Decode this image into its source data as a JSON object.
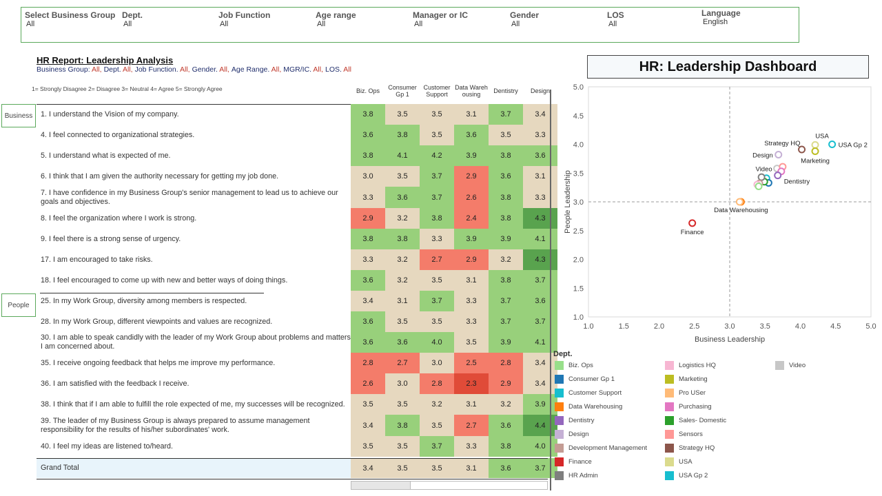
{
  "filters": [
    {
      "label": "Select Business Group",
      "value": "All"
    },
    {
      "label": "Dept.",
      "value": "All"
    },
    {
      "label": "Job Function",
      "value": "All"
    },
    {
      "label": "Age range",
      "value": "All"
    },
    {
      "label": "Manager or IC",
      "value": "All"
    },
    {
      "label": "Gender",
      "value": "All"
    },
    {
      "label": "LOS",
      "value": "All"
    },
    {
      "label": "Language",
      "value": "English"
    }
  ],
  "report": {
    "title": "HR Report: Leadership Analysis",
    "subtitle": [
      {
        "label": "Business Group:",
        "value": "All,"
      },
      {
        "label": "Dept.",
        "value": "All,"
      },
      {
        "label": "Job Function.",
        "value": "All,"
      },
      {
        "label": "Gender.",
        "value": "All,"
      },
      {
        "label": "Age Range.",
        "value": "All,"
      },
      {
        "label": "MGR/IC.",
        "value": "All,"
      },
      {
        "label": "LOS.",
        "value": "All"
      }
    ],
    "scale_legend": "1= Strongly Disagree  2= Disagree  3= Neutral  4= Agree  5= Strongly Agree"
  },
  "columns": [
    "Biz. Ops",
    "Consumer Gp 1",
    "Customer Support",
    "Data Warehousing",
    "Dentistry",
    "Design"
  ],
  "column_headers_display": [
    [
      "Biz. Ops"
    ],
    [
      "Consumer",
      "Gp 1"
    ],
    [
      "Customer",
      "Support"
    ],
    [
      "Data Wareh",
      "ousing"
    ],
    [
      "Dentistry"
    ],
    [
      "Design"
    ]
  ],
  "side_labels": {
    "business": "Business",
    "people": "People"
  },
  "questions": [
    {
      "text": "1. I understand the Vision of my company.",
      "values": [
        "3.8",
        "3.5",
        "3.5",
        "3.1",
        "3.7",
        "3.4"
      ]
    },
    {
      "text": "4. I feel connected to organizational strategies.",
      "values": [
        "3.6",
        "3.8",
        "3.5",
        "3.6",
        "3.5",
        "3.3"
      ]
    },
    {
      "text": "5. I understand what is expected of me.",
      "values": [
        "3.8",
        "4.1",
        "4.2",
        "3.9",
        "3.8",
        "3.6"
      ]
    },
    {
      "text": "6. I think that I am given the authority necessary for getting my job done.",
      "values": [
        "3.0",
        "3.5",
        "3.7",
        "2.9",
        "3.6",
        "3.1"
      ]
    },
    {
      "text": "7. I have confidence in my Business Group's senior management to lead us to achieve our goals and objectives.",
      "values": [
        "3.3",
        "3.6",
        "3.7",
        "2.6",
        "3.8",
        "3.3"
      ]
    },
    {
      "text": "8. I feel the organization where I work is strong.",
      "values": [
        "2.9",
        "3.2",
        "3.8",
        "2.4",
        "3.8",
        "4.3"
      ]
    },
    {
      "text": "9. I feel there is a strong sense of urgency.",
      "values": [
        "3.8",
        "3.8",
        "3.3",
        "3.9",
        "3.9",
        "4.1"
      ]
    },
    {
      "text": "17. I am encouraged to take risks.",
      "values": [
        "3.3",
        "3.2",
        "2.7",
        "2.9",
        "3.2",
        "4.3"
      ]
    },
    {
      "text": "18. I feel encouraged to come up with new and better ways of doing things.",
      "values": [
        "3.6",
        "3.2",
        "3.5",
        "3.1",
        "3.8",
        "3.7"
      ]
    },
    {
      "text": "25. In my Work Group,  diversity among members is respected.",
      "values": [
        "3.4",
        "3.1",
        "3.7",
        "3.3",
        "3.7",
        "3.6"
      ]
    },
    {
      "text": "28. In my Work Group, different viewpoints and values are recognized.",
      "values": [
        "3.6",
        "3.5",
        "3.5",
        "3.3",
        "3.7",
        "3.7"
      ]
    },
    {
      "text": "30. I am able to speak candidly with the leader of my Work Group about problems and matters I am concerned about.",
      "values": [
        "3.6",
        "3.6",
        "4.0",
        "3.5",
        "3.9",
        "4.1"
      ]
    },
    {
      "text": "35. I receive ongoing feedback that helps me improve my performance.",
      "values": [
        "2.8",
        "2.7",
        "3.0",
        "2.5",
        "2.8",
        "3.4"
      ]
    },
    {
      "text": "36. I am satisfied with the feedback I receive.",
      "values": [
        "2.6",
        "3.0",
        "2.8",
        "2.3",
        "2.9",
        "3.4"
      ]
    },
    {
      "text": "38. I think that if I am able to fulfill the role expected of me, my successes will be recognized.",
      "values": [
        "3.5",
        "3.5",
        "3.2",
        "3.1",
        "3.2",
        "3.9"
      ]
    },
    {
      "text": "39. The leader of my Business Group  is always prepared to assume management responsibility for the results of his/her subordinates' work.",
      "values": [
        "3.4",
        "3.8",
        "3.5",
        "2.7",
        "3.6",
        "4.4"
      ]
    },
    {
      "text": "40. I feel my ideas are listened to/heard.",
      "values": [
        "3.5",
        "3.5",
        "3.7",
        "3.3",
        "3.8",
        "4.0"
      ]
    }
  ],
  "grand_total": {
    "text": "Grand Total",
    "values": [
      "3.4",
      "3.5",
      "3.5",
      "3.1",
      "3.6",
      "3.7"
    ]
  },
  "dashboard_title": "HR: Leadership Dashboard",
  "chart_data": {
    "type": "scatter",
    "xlabel": "Business Leadership",
    "ylabel": "People Leadership",
    "xlim": [
      1.0,
      5.0
    ],
    "ylim": [
      1.0,
      5.0
    ],
    "xticks": [
      "1.0",
      "1.5",
      "2.0",
      "2.5",
      "3.0",
      "3.5",
      "4.0",
      "4.5",
      "5.0"
    ],
    "yticks": [
      "1.0",
      "1.5",
      "2.0",
      "2.5",
      "3.0",
      "3.5",
      "4.0",
      "4.5",
      "5.0"
    ],
    "reference_lines": {
      "x": 3.0,
      "y": 3.0
    },
    "grid": false,
    "points": [
      {
        "dept": "Finance",
        "x": 2.47,
        "y": 2.63,
        "color": "#d62728",
        "label": "Finance"
      },
      {
        "dept": "Data Warehousing",
        "x": 3.16,
        "y": 3.0,
        "color": "#ff7f0e",
        "label": "Data Warehousing"
      },
      {
        "dept": "Pro USer",
        "x": 3.14,
        "y": 3.0,
        "color": "#ffbb78",
        "label": ""
      },
      {
        "dept": "Strategy HQ",
        "x": 4.02,
        "y": 3.91,
        "color": "#8c564b",
        "label": "Strategy HQ"
      },
      {
        "dept": "USA",
        "x": 4.21,
        "y": 3.99,
        "color": "#dbdb8d",
        "label": "USA"
      },
      {
        "dept": "USA Gp 2",
        "x": 4.45,
        "y": 4.0,
        "color": "#17becf",
        "label": "USA Gp 2"
      },
      {
        "dept": "Marketing",
        "x": 4.21,
        "y": 3.88,
        "color": "#bcbd22",
        "label": "Marketing"
      },
      {
        "dept": "Design",
        "x": 3.69,
        "y": 3.82,
        "color": "#c5b0d5",
        "label": "Design"
      },
      {
        "dept": "Video",
        "x": 3.67,
        "y": 3.58,
        "color": "#c7c7c7",
        "label": "Video"
      },
      {
        "dept": "Sensors",
        "x": 3.75,
        "y": 3.61,
        "color": "#ff9896",
        "label": ""
      },
      {
        "dept": "Purchasing",
        "x": 3.73,
        "y": 3.53,
        "color": "#e377c2",
        "label": ""
      },
      {
        "dept": "Dentistry",
        "x": 3.68,
        "y": 3.46,
        "color": "#9467bd",
        "label": "Dentistry"
      },
      {
        "dept": "Customer Support",
        "x": 3.52,
        "y": 3.41,
        "color": "#17becf",
        "label": ""
      },
      {
        "dept": "Consumer Gp 1",
        "x": 3.55,
        "y": 3.33,
        "color": "#1f77b4",
        "label": ""
      },
      {
        "dept": "Sales- Domestic",
        "x": 3.49,
        "y": 3.35,
        "color": "#2ca02c",
        "label": ""
      },
      {
        "dept": "HR Admin",
        "x": 3.45,
        "y": 3.43,
        "color": "#7f7f7f",
        "label": ""
      },
      {
        "dept": "Development Management",
        "x": 3.42,
        "y": 3.32,
        "color": "#c49c94",
        "label": ""
      },
      {
        "dept": "Logistics HQ",
        "x": 3.39,
        "y": 3.3,
        "color": "#f7b6d2",
        "label": ""
      },
      {
        "dept": "Biz. Ops",
        "x": 3.41,
        "y": 3.27,
        "color": "#98df8a",
        "label": ""
      }
    ]
  },
  "legend": {
    "title": "Dept.",
    "items": [
      {
        "label": "Biz. Ops",
        "color": "#98df8a"
      },
      {
        "label": "Consumer Gp 1",
        "color": "#1f77b4"
      },
      {
        "label": "Customer Support",
        "color": "#17becf"
      },
      {
        "label": "Data Warehousing",
        "color": "#ff7f0e"
      },
      {
        "label": "Dentistry",
        "color": "#9467bd"
      },
      {
        "label": "Design",
        "color": "#c5b0d5"
      },
      {
        "label": "Development Management",
        "color": "#c49c94"
      },
      {
        "label": "Finance",
        "color": "#d62728"
      },
      {
        "label": "HR Admin",
        "color": "#7f7f7f"
      },
      {
        "label": "Logistics HQ",
        "color": "#f7b6d2"
      },
      {
        "label": "Marketing",
        "color": "#bcbd22"
      },
      {
        "label": "Pro USer",
        "color": "#ffbb78"
      },
      {
        "label": "Purchasing",
        "color": "#e377c2"
      },
      {
        "label": "Sales- Domestic",
        "color": "#2ca02c"
      },
      {
        "label": "Sensors",
        "color": "#ff9896"
      },
      {
        "label": "Strategy HQ",
        "color": "#8c564b"
      },
      {
        "label": "USA",
        "color": "#dbdb8d"
      },
      {
        "label": "USA Gp 2",
        "color": "#17becf"
      },
      {
        "label": "Video",
        "color": "#c7c7c7"
      }
    ]
  }
}
